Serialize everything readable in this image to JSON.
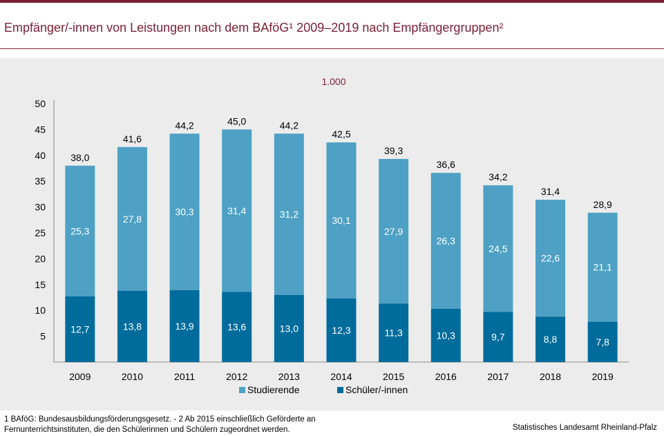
{
  "page": {
    "title": "Empfänger/-innen von Leistungen nach dem BAföG¹ 2009–2019 nach Empfängergruppen²",
    "footnote": "1 BAföG: Bundesausbildungsförderungsgesetz.  - 2 Ab 2015 einschließlich Geförderte an Fernunterrichtsinstituten, die den Schülerinnen und Schülern zugeordnet werden.",
    "source": "Statistisches Landesamt Rheinland-Pfalz"
  },
  "colors": {
    "brand": "#7a1e33",
    "studierende": "#4ea1c4",
    "schueler": "#006c9c",
    "panel": "#ececec"
  },
  "chart_data": {
    "type": "bar",
    "stacked": true,
    "unit_label": "1.000",
    "categories": [
      "2009",
      "2010",
      "2011",
      "2012",
      "2013",
      "2014",
      "2015",
      "2016",
      "2017",
      "2018",
      "2019"
    ],
    "series": [
      {
        "name": "Schüler/-innen",
        "values": [
          12.7,
          13.8,
          13.9,
          13.6,
          13.0,
          12.3,
          11.3,
          10.3,
          9.7,
          8.8,
          7.8
        ],
        "labels": [
          "12,7",
          "13,8",
          "13,9",
          "13,6",
          "13,0",
          "12,3",
          "11,3",
          "10,3",
          "9,7",
          "8,8",
          "7,8"
        ]
      },
      {
        "name": "Studierende",
        "values": [
          25.3,
          27.8,
          30.3,
          31.4,
          31.2,
          30.1,
          27.9,
          26.3,
          24.5,
          22.6,
          21.1
        ],
        "labels": [
          "25,3",
          "27,8",
          "30,3",
          "31,4",
          "31,2",
          "30,1",
          "27,9",
          "26,3",
          "24,5",
          "22,6",
          "21,1"
        ]
      }
    ],
    "totals": [
      38.0,
      41.6,
      44.2,
      45.0,
      44.2,
      42.5,
      39.3,
      36.6,
      34.2,
      31.4,
      28.9
    ],
    "total_labels": [
      "38,0",
      "41,6",
      "44,2",
      "45,0",
      "44,2",
      "42,5",
      "39,3",
      "36,6",
      "34,2",
      "31,4",
      "28,9"
    ],
    "ylim": [
      0,
      50
    ],
    "yticks": [
      5,
      10,
      15,
      20,
      25,
      30,
      35,
      40,
      45,
      50
    ],
    "legend": {
      "placement": "bottom-center",
      "entries": [
        "Studierende",
        "Schüler/-innen"
      ]
    },
    "grid": false
  }
}
